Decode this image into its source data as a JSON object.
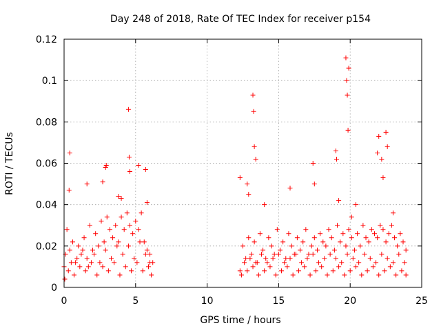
{
  "chart_data": {
    "type": "scatter",
    "title": "Day 248 of 2018, Rate Of TEC Index for receiver p154",
    "xlabel": "GPS time / hours",
    "ylabel": "ROTI / TECUs",
    "xlim": [
      0,
      25
    ],
    "ylim": [
      0,
      0.12
    ],
    "xticks": [
      0,
      5,
      10,
      15,
      20,
      25
    ],
    "xtick_labels": [
      "0",
      "5",
      "10",
      "15",
      "20",
      "25"
    ],
    "yticks": [
      0,
      0.02,
      0.04,
      0.06,
      0.08,
      0.1,
      0.12
    ],
    "ytick_labels": [
      "0",
      "0.02",
      "0.04",
      "0.06",
      "0.08",
      "0.1",
      "0.12"
    ],
    "grid": true,
    "marker": "+",
    "color": "#ff0000",
    "series": [
      {
        "name": "ROTI",
        "x": [
          0.0,
          0.2,
          0.4,
          0.6,
          0.8,
          1.0,
          1.2,
          1.4,
          1.6,
          1.8,
          2.0,
          2.2,
          2.4,
          2.6,
          2.8,
          3.0,
          3.2,
          3.4,
          3.6,
          3.8,
          4.0,
          4.2,
          4.4,
          4.6,
          4.8,
          5.0,
          5.2,
          5.4,
          5.6,
          5.8,
          6.0,
          6.2,
          0.05,
          0.3,
          0.7,
          1.1,
          1.5,
          1.9,
          2.3,
          2.7,
          3.1,
          3.5,
          3.9,
          4.3,
          4.7,
          5.1,
          5.5,
          5.9,
          6.1,
          0.1,
          0.5,
          0.9,
          1.3,
          1.7,
          2.1,
          2.5,
          2.9,
          3.3,
          3.7,
          4.1,
          4.5,
          4.9,
          5.3,
          5.7,
          6.0,
          0.35,
          0.4,
          1.6,
          2.7,
          2.9,
          2.95,
          4.5,
          4.55,
          4.6,
          5.2,
          5.7,
          5.8,
          3.8,
          4.0,
          12.3,
          12.5,
          12.7,
          12.9,
          13.1,
          13.3,
          13.5,
          13.7,
          13.9,
          14.1,
          14.3,
          14.5,
          14.7,
          14.9,
          15.1,
          15.3,
          15.5,
          15.7,
          15.9,
          16.1,
          16.3,
          16.5,
          16.7,
          16.9,
          17.1,
          17.3,
          17.5,
          17.7,
          17.9,
          18.1,
          18.3,
          18.5,
          18.7,
          18.9,
          19.1,
          19.3,
          19.5,
          19.7,
          19.9,
          20.1,
          20.3,
          20.5,
          20.7,
          20.9,
          21.1,
          21.3,
          21.5,
          21.7,
          21.9,
          22.1,
          22.3,
          22.5,
          22.7,
          22.9,
          23.1,
          23.3,
          23.5,
          23.7,
          23.9,
          12.4,
          12.8,
          13.2,
          13.6,
          14.0,
          14.4,
          14.8,
          15.2,
          15.6,
          16.0,
          16.4,
          16.8,
          17.2,
          17.6,
          18.0,
          18.4,
          18.8,
          19.2,
          19.6,
          20.0,
          20.4,
          20.8,
          21.2,
          21.6,
          22.0,
          22.4,
          22.8,
          23.2,
          23.6,
          23.9,
          12.6,
          13.0,
          13.4,
          13.8,
          14.2,
          14.6,
          15.0,
          15.4,
          15.8,
          16.2,
          16.6,
          17.0,
          17.4,
          17.8,
          18.2,
          18.6,
          19.0,
          19.4,
          19.8,
          20.2,
          20.6,
          21.0,
          21.4,
          21.8,
          22.2,
          22.6,
          23.0,
          23.4,
          23.8,
          12.3,
          12.8,
          12.9,
          13.2,
          13.25,
          13.3,
          13.4,
          14.0,
          15.8,
          17.4,
          17.5,
          19.0,
          19.05,
          19.2,
          19.7,
          19.75,
          19.8,
          19.85,
          19.9,
          20.1,
          20.4,
          21.9,
          22.0,
          22.2,
          22.3,
          22.5,
          22.6,
          23.0
        ],
        "y": [
          0.01,
          0.028,
          0.018,
          0.022,
          0.012,
          0.02,
          0.016,
          0.024,
          0.014,
          0.03,
          0.018,
          0.026,
          0.02,
          0.032,
          0.022,
          0.034,
          0.028,
          0.024,
          0.03,
          0.022,
          0.034,
          0.028,
          0.036,
          0.03,
          0.026,
          0.032,
          0.028,
          0.036,
          0.022,
          0.018,
          0.016,
          0.012,
          0.004,
          0.008,
          0.006,
          0.01,
          0.008,
          0.012,
          0.006,
          0.01,
          0.008,
          0.012,
          0.006,
          0.01,
          0.008,
          0.012,
          0.008,
          0.01,
          0.006,
          0.016,
          0.012,
          0.014,
          0.018,
          0.01,
          0.016,
          0.012,
          0.018,
          0.014,
          0.02,
          0.016,
          0.02,
          0.014,
          0.022,
          0.016,
          0.012,
          0.047,
          0.065,
          0.05,
          0.051,
          0.058,
          0.059,
          0.086,
          0.063,
          0.056,
          0.059,
          0.057,
          0.041,
          0.044,
          0.043,
          0.008,
          0.02,
          0.014,
          0.024,
          0.016,
          0.022,
          0.012,
          0.026,
          0.018,
          0.014,
          0.024,
          0.02,
          0.016,
          0.028,
          0.018,
          0.022,
          0.014,
          0.026,
          0.02,
          0.016,
          0.024,
          0.018,
          0.022,
          0.028,
          0.016,
          0.02,
          0.024,
          0.018,
          0.026,
          0.022,
          0.02,
          0.028,
          0.024,
          0.018,
          0.03,
          0.022,
          0.026,
          0.02,
          0.028,
          0.024,
          0.018,
          0.026,
          0.02,
          0.03,
          0.024,
          0.022,
          0.028,
          0.026,
          0.024,
          0.03,
          0.028,
          0.022,
          0.026,
          0.03,
          0.024,
          0.02,
          0.026,
          0.022,
          0.018,
          0.006,
          0.008,
          0.01,
          0.006,
          0.008,
          0.01,
          0.006,
          0.008,
          0.01,
          0.006,
          0.008,
          0.01,
          0.006,
          0.008,
          0.01,
          0.006,
          0.008,
          0.01,
          0.006,
          0.008,
          0.01,
          0.006,
          0.008,
          0.01,
          0.006,
          0.008,
          0.01,
          0.006,
          0.008,
          0.006,
          0.012,
          0.014,
          0.012,
          0.016,
          0.012,
          0.014,
          0.016,
          0.012,
          0.014,
          0.016,
          0.012,
          0.014,
          0.016,
          0.012,
          0.014,
          0.016,
          0.014,
          0.012,
          0.016,
          0.014,
          0.012,
          0.016,
          0.014,
          0.012,
          0.016,
          0.014,
          0.012,
          0.016,
          0.012,
          0.053,
          0.05,
          0.045,
          0.093,
          0.085,
          0.068,
          0.062,
          0.04,
          0.048,
          0.06,
          0.05,
          0.066,
          0.062,
          0.042,
          0.111,
          0.1,
          0.093,
          0.076,
          0.106,
          0.034,
          0.04,
          0.065,
          0.073,
          0.062,
          0.053,
          0.075,
          0.068,
          0.036
        ]
      }
    ]
  }
}
